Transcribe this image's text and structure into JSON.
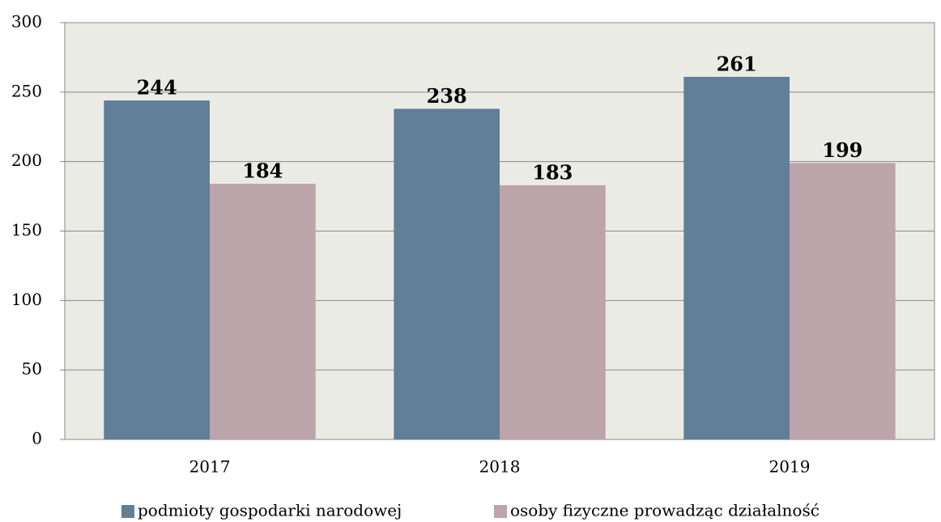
{
  "chart_data": {
    "type": "bar",
    "categories": [
      "2017",
      "2018",
      "2019"
    ],
    "series": [
      {
        "name": "podmioty gospodarki narodowej",
        "color": "#617f96",
        "values": [
          244,
          238,
          261
        ]
      },
      {
        "name": "osoby fizyczne prowadząc działalność",
        "color": "#bca4ab",
        "values": [
          184,
          183,
          199
        ]
      }
    ],
    "ylim": [
      0,
      300
    ],
    "yticks": [
      0,
      50,
      100,
      150,
      200,
      250,
      300
    ],
    "grid": true,
    "legend": "bottom"
  }
}
